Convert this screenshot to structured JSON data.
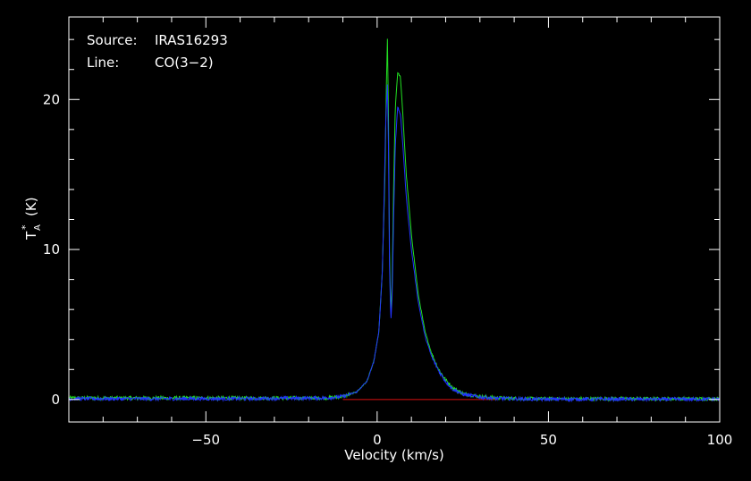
{
  "colors": {
    "background": "#000000",
    "axes": "#ffffff",
    "text": "#ffffff",
    "series_green": "#22e022",
    "series_blue": "#2233ff",
    "baseline": "#dd1111"
  },
  "annotations": {
    "source_label": "Source:",
    "source_value": "IRAS16293",
    "line_label": "Line:",
    "line_value": "CO(3−2)"
  },
  "chart_data": {
    "type": "line",
    "title": "",
    "xlabel": "Velocity (km/s)",
    "ylabel_main": "T",
    "ylabel_sub": "A",
    "ylabel_sup": "*",
    "ylabel_unit": "(K)",
    "xlim": [
      -90,
      100
    ],
    "ylim": [
      -1.5,
      25.5
    ],
    "x_major_ticks": [
      -50,
      0,
      50,
      100
    ],
    "x_tick_labels": [
      "−50",
      "0",
      "50",
      "100"
    ],
    "y_major_ticks": [
      0,
      10,
      20
    ],
    "y_tick_labels": [
      "0",
      "10",
      "20"
    ],
    "grid": false,
    "legend": "none",
    "series": [
      {
        "color": "green",
        "x": [
          -90,
          -40,
          -15,
          -10,
          -6,
          -3,
          -1,
          0.5,
          1.5,
          2.3,
          2.7,
          3.0,
          3.3,
          3.6,
          4.0,
          4.4,
          4.8,
          5.3,
          6.0,
          6.8,
          7.5,
          8.5,
          10,
          12,
          14,
          16,
          18,
          20,
          22,
          25,
          30,
          35,
          45,
          100
        ],
        "y": [
          0.1,
          0.1,
          0.1,
          0.2,
          0.5,
          1.2,
          2.5,
          4.5,
          8.5,
          15.0,
          21.0,
          24.0,
          19.0,
          10.0,
          5.5,
          8.0,
          14.0,
          19.5,
          21.8,
          21.5,
          19.0,
          15.0,
          11.0,
          7.0,
          4.5,
          3.0,
          2.0,
          1.3,
          0.8,
          0.4,
          0.2,
          0.1,
          0.05,
          0.05
        ]
      },
      {
        "color": "blue",
        "x": [
          -90,
          -40,
          -15,
          -10,
          -6,
          -3,
          -1,
          0.5,
          1.5,
          2.0,
          2.5,
          3.0,
          3.3,
          3.6,
          4.0,
          4.4,
          4.8,
          5.3,
          6.0,
          6.8,
          7.5,
          8.5,
          10,
          12,
          14,
          16,
          18,
          20,
          22,
          25,
          30,
          35,
          45,
          100
        ],
        "y": [
          0.05,
          0.05,
          0.1,
          0.2,
          0.5,
          1.2,
          2.5,
          4.5,
          8.5,
          13.0,
          18.5,
          21.0,
          17.0,
          9.0,
          5.2,
          7.0,
          12.0,
          17.0,
          19.5,
          19.0,
          17.0,
          13.5,
          10.0,
          6.5,
          4.2,
          2.8,
          1.9,
          1.2,
          0.7,
          0.35,
          0.15,
          0.08,
          0.02,
          0.02
        ]
      }
    ],
    "baseline": {
      "color": "red",
      "y": 0,
      "x_range": [
        -10,
        35
      ]
    }
  }
}
